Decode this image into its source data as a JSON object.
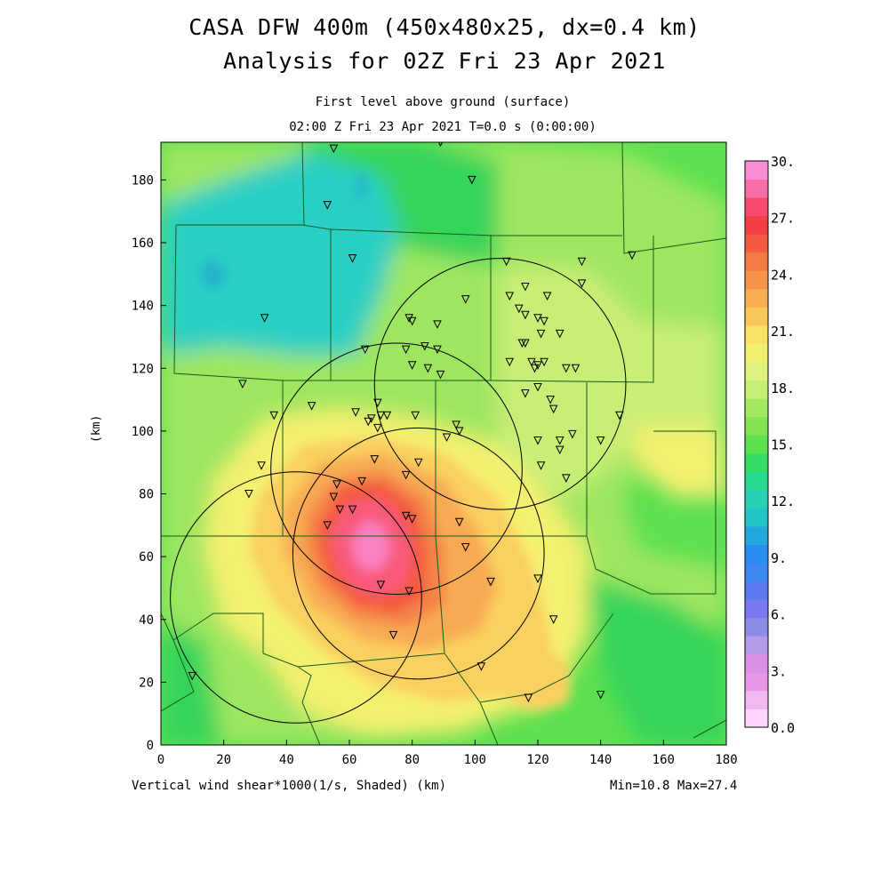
{
  "title_line1": "CASA DFW 400m (450x480x25, dx=0.4 km)",
  "title_line2": "Analysis for 02Z Fri 23 Apr 2021",
  "subtitle_level": "First level above ground (surface)",
  "subtitle_time": "02:00 Z Fri 23 Apr 2021    T=0.0 s (0:00:00)",
  "footer_variable": "Vertical wind shear*1000(1/s, Shaded)  (km)",
  "footer_minmax": "Min=10.8 Max=27.4",
  "y_axis_label": "(km)",
  "x_ticks": [
    "0",
    "20",
    "40",
    "60",
    "80",
    "100",
    "120",
    "140",
    "160",
    "180"
  ],
  "y_ticks": [
    "0",
    "20",
    "40",
    "60",
    "80",
    "100",
    "120",
    "140",
    "160",
    "180"
  ],
  "colorbar_labels": [
    "0.0",
    "3.",
    "6.",
    "9.",
    "12.",
    "15.",
    "18.",
    "21.",
    "24.",
    "27.",
    "30."
  ],
  "colorbar_colors": [
    "#ffd6ff",
    "#f2b8f0",
    "#e697e6",
    "#d88fe4",
    "#b49be8",
    "#8c8ce8",
    "#7a7af0",
    "#5a78f0",
    "#3a88f2",
    "#2a8cf0",
    "#22a8dc",
    "#22c4c8",
    "#26d0b0",
    "#26d890",
    "#34dc64",
    "#5ee050",
    "#82e452",
    "#a2e860",
    "#c4ee74",
    "#def27e",
    "#f2f070",
    "#fae266",
    "#fac85a",
    "#f8ae52",
    "#f5944a",
    "#f47a46",
    "#f45a40",
    "#f43e44",
    "#f64a6e",
    "#f86ca8",
    "#fa8cd4"
  ],
  "map_colors": {
    "green_mid": "#5ee050",
    "green_dark": "#34d45a",
    "green_light": "#9ee660",
    "cyan": "#2acfc4",
    "cyan_dark": "#22b4cc",
    "lime": "#c8ee74",
    "yellow": "#f4f070",
    "orange_light": "#fad060",
    "orange": "#f8aa52",
    "orange_dark": "#f4844a",
    "red": "#f45a40",
    "pink": "#f85a7a",
    "pink_light": "#fa80c0"
  },
  "radar_rings_km": [
    {
      "cx": 43,
      "cy": 47,
      "r": 40
    },
    {
      "cx": 82,
      "cy": 61,
      "r": 40
    },
    {
      "cx": 75,
      "cy": 88,
      "r": 40
    },
    {
      "cx": 108,
      "cy": 115,
      "r": 40
    }
  ],
  "stations_km": [
    [
      55,
      190
    ],
    [
      89,
      192
    ],
    [
      99,
      180
    ],
    [
      53,
      172
    ],
    [
      61,
      155
    ],
    [
      33,
      136
    ],
    [
      110,
      154
    ],
    [
      134,
      154
    ],
    [
      150,
      156
    ],
    [
      134,
      147
    ],
    [
      116,
      146
    ],
    [
      111,
      143
    ],
    [
      97,
      142
    ],
    [
      123,
      143
    ],
    [
      79,
      136
    ],
    [
      80,
      135
    ],
    [
      88,
      134
    ],
    [
      114,
      139
    ],
    [
      116,
      137
    ],
    [
      120,
      136
    ],
    [
      122,
      135
    ],
    [
      127,
      131
    ],
    [
      121,
      131
    ],
    [
      115,
      128
    ],
    [
      116,
      128
    ],
    [
      65,
      126
    ],
    [
      78,
      126
    ],
    [
      84,
      127
    ],
    [
      88,
      126
    ],
    [
      80,
      121
    ],
    [
      85,
      120
    ],
    [
      89,
      118
    ],
    [
      111,
      122
    ],
    [
      118,
      122
    ],
    [
      120,
      121
    ],
    [
      122,
      122
    ],
    [
      129,
      120
    ],
    [
      132,
      120
    ],
    [
      119,
      120
    ],
    [
      116,
      112
    ],
    [
      120,
      114
    ],
    [
      124,
      110
    ],
    [
      125,
      107
    ],
    [
      26,
      115
    ],
    [
      36,
      105
    ],
    [
      48,
      108
    ],
    [
      62,
      106
    ],
    [
      67,
      104
    ],
    [
      69,
      109
    ],
    [
      70,
      105
    ],
    [
      72,
      105
    ],
    [
      81,
      105
    ],
    [
      66,
      103
    ],
    [
      69,
      101
    ],
    [
      94,
      102
    ],
    [
      95,
      100
    ],
    [
      91,
      98
    ],
    [
      120,
      97
    ],
    [
      127,
      97
    ],
    [
      131,
      99
    ],
    [
      140,
      97
    ],
    [
      146,
      105
    ],
    [
      32,
      89
    ],
    [
      28,
      80
    ],
    [
      68,
      91
    ],
    [
      82,
      90
    ],
    [
      127,
      94
    ],
    [
      121,
      89
    ],
    [
      129,
      85
    ],
    [
      56,
      83
    ],
    [
      64,
      84
    ],
    [
      55,
      79
    ],
    [
      78,
      86
    ],
    [
      57,
      75
    ],
    [
      61,
      75
    ],
    [
      53,
      70
    ],
    [
      78,
      73
    ],
    [
      80,
      72
    ],
    [
      95,
      71
    ],
    [
      97,
      63
    ],
    [
      120,
      53
    ],
    [
      105,
      52
    ],
    [
      70,
      51
    ],
    [
      79,
      49
    ],
    [
      125,
      40
    ],
    [
      74,
      35
    ],
    [
      102,
      25
    ],
    [
      117,
      15
    ],
    [
      140,
      16
    ],
    [
      10,
      22
    ]
  ]
}
